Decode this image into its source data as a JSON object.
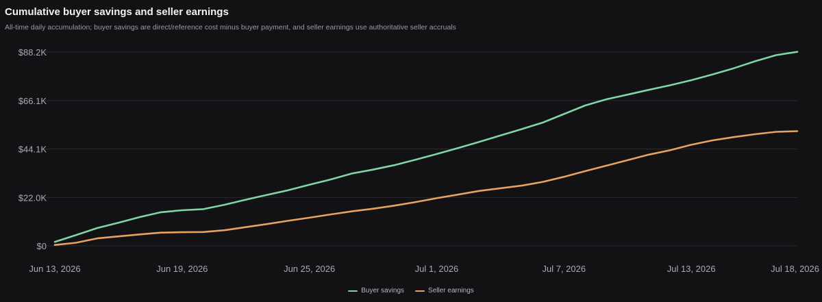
{
  "chart_data": {
    "type": "line",
    "title": "Cumulative buyer savings and seller earnings",
    "subtitle": "All-time daily accumulation; buyer savings are direct/reference cost minus buyer payment, and seller earnings use authoritative seller accruals",
    "x": [
      "2026-06-13",
      "2026-06-14",
      "2026-06-15",
      "2026-06-16",
      "2026-06-17",
      "2026-06-18",
      "2026-06-19",
      "2026-06-20",
      "2026-06-21",
      "2026-06-22",
      "2026-06-23",
      "2026-06-24",
      "2026-06-25",
      "2026-06-26",
      "2026-06-27",
      "2026-06-28",
      "2026-06-29",
      "2026-06-30",
      "2026-07-01",
      "2026-07-02",
      "2026-07-03",
      "2026-07-04",
      "2026-07-05",
      "2026-07-06",
      "2026-07-07",
      "2026-07-08",
      "2026-07-09",
      "2026-07-10",
      "2026-07-11",
      "2026-07-12",
      "2026-07-13",
      "2026-07-14",
      "2026-07-15",
      "2026-07-16",
      "2026-07-17",
      "2026-07-18"
    ],
    "series": [
      {
        "name": "Buyer savings",
        "color": "#7fd6a4",
        "values": [
          1800,
          4900,
          8100,
          10500,
          13100,
          15300,
          16200,
          16700,
          18700,
          21000,
          23200,
          25300,
          27800,
          30200,
          32900,
          34700,
          36700,
          39200,
          41800,
          44500,
          47300,
          50200,
          53100,
          56100,
          60000,
          63900,
          66700,
          68800,
          71000,
          73100,
          75400,
          78000,
          80800,
          84000,
          86800,
          88300
        ]
      },
      {
        "name": "Seller earnings",
        "color": "#e7a261",
        "values": [
          400,
          1400,
          3400,
          4300,
          5200,
          6000,
          6200,
          6300,
          7100,
          8500,
          9900,
          11400,
          12800,
          14300,
          15700,
          16900,
          18300,
          19900,
          21700,
          23300,
          25000,
          26200,
          27400,
          29100,
          31400,
          34000,
          36500,
          39000,
          41500,
          43500,
          46000,
          48000,
          49500,
          50800,
          51900,
          52200
        ]
      }
    ],
    "x_tick_labels": [
      "Jun 13, 2026",
      "Jun 19, 2026",
      "Jun 25, 2026",
      "Jul 1, 2026",
      "Jul 7, 2026",
      "Jul 13, 2026",
      "Jul 18, 2026"
    ],
    "x_tick_dates": [
      "2026-06-13",
      "2026-06-19",
      "2026-06-25",
      "2026-07-01",
      "2026-07-07",
      "2026-07-13",
      "2026-07-18"
    ],
    "y_tick_values": [
      0,
      22000,
      44100,
      66100,
      88200
    ],
    "y_tick_labels": [
      "$0",
      "$22.0K",
      "$44.1K",
      "$66.1K",
      "$88.2K"
    ],
    "ylim": [
      0,
      88200
    ],
    "grid": true,
    "legend_position": "bottom-center",
    "background": "#121214",
    "grid_color": "#2a2a30"
  }
}
